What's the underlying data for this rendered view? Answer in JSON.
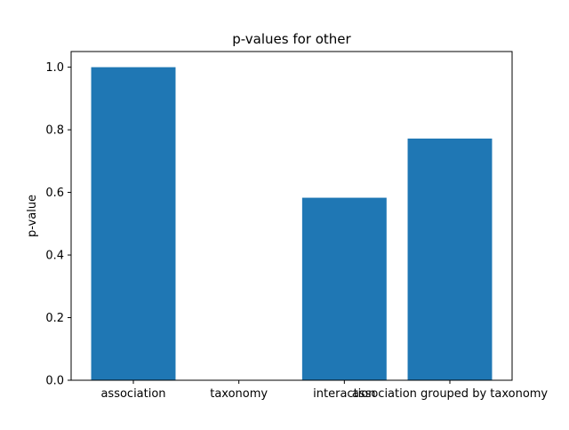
{
  "chart_data": {
    "type": "bar",
    "title": "p-values for other",
    "xlabel": "",
    "ylabel": "p-value",
    "categories": [
      "association",
      "taxonomy",
      "interaction",
      "association grouped by taxonomy"
    ],
    "values": [
      1.0,
      0.0,
      0.583,
      0.772
    ],
    "ylim": [
      0,
      1.05
    ],
    "yticks": [
      0.0,
      0.2,
      0.4,
      0.6,
      0.8,
      1.0
    ],
    "ytick_labels": [
      "0.0",
      "0.2",
      "0.4",
      "0.6",
      "0.8",
      "1.0"
    ],
    "bar_color": "#1f77b4",
    "grid": false,
    "legend": "none"
  }
}
